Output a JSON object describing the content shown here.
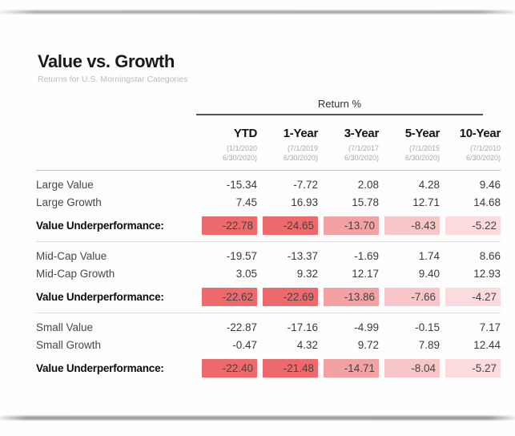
{
  "page": {
    "title": "Value vs. Growth",
    "subtitle": "Returns for U.S. Morningstar Categories"
  },
  "table": {
    "group_header": "Return %",
    "columns": [
      {
        "label": "YTD",
        "date_line1": "(1/1/2020",
        "date_line2": "6/30/2020)"
      },
      {
        "label": "1-Year",
        "date_line1": "(7/1/2019",
        "date_line2": "6/30/2020)"
      },
      {
        "label": "3-Year",
        "date_line1": "(7/1/2017",
        "date_line2": "6/30/2020)"
      },
      {
        "label": "5-Year",
        "date_line1": "(7/1/2015",
        "date_line2": "6/30/2020)"
      },
      {
        "label": "10-Year",
        "date_line1": "(7/1/2010",
        "date_line2": "6/30/2020)"
      }
    ],
    "sections": [
      {
        "rows": [
          {
            "label": "Large Value",
            "values": [
              "-15.34",
              "-7.72",
              "2.08",
              "4.28",
              "9.46"
            ]
          },
          {
            "label": "Large Growth",
            "values": [
              "7.45",
              "16.93",
              "15.78",
              "12.71",
              "14.68"
            ]
          }
        ],
        "summary": {
          "label": "Value Underperformance:",
          "values": [
            "-22.78",
            "-24.65",
            "-13.70",
            "-8.43",
            "-5.22"
          ],
          "cell_colors": [
            "#ee696c",
            "#ee696c",
            "#f4a1a4",
            "#f8c6c9",
            "#fbdbde"
          ]
        }
      },
      {
        "rows": [
          {
            "label": "Mid-Cap Value",
            "values": [
              "-19.57",
              "-13.37",
              "-1.69",
              "1.74",
              "8.66"
            ]
          },
          {
            "label": "Mid-Cap Growth",
            "values": [
              "3.05",
              "9.32",
              "12.17",
              "9.40",
              "12.93"
            ]
          }
        ],
        "summary": {
          "label": "Value Underperformance:",
          "values": [
            "-22.62",
            "-22.69",
            "-13.86",
            "-7.66",
            "-4.27"
          ],
          "cell_colors": [
            "#ee696c",
            "#ee696c",
            "#f4a1a4",
            "#f8c6c9",
            "#fbdbde"
          ]
        }
      },
      {
        "rows": [
          {
            "label": "Small Value",
            "values": [
              "-22.87",
              "-17.16",
              "-4.99",
              "-0.15",
              "7.17"
            ]
          },
          {
            "label": "Small Growth",
            "values": [
              "-0.47",
              "4.32",
              "9.72",
              "7.89",
              "12.44"
            ]
          }
        ],
        "summary": {
          "label": "Value Underperformance:",
          "values": [
            "-22.40",
            "-21.48",
            "-14.71",
            "-8.04",
            "-5.27"
          ],
          "cell_colors": [
            "#ee696c",
            "#ee696c",
            "#f4a1a4",
            "#f8c6c9",
            "#fbdbde"
          ]
        }
      }
    ]
  },
  "colors": {
    "heat_palette": [
      "#ee696c",
      "#f4a1a4",
      "#f8c6c9",
      "#fbdbde"
    ],
    "accent_red": "#ee696c"
  },
  "chart_data": {
    "type": "table",
    "title": "Value vs. Growth",
    "subtitle": "Returns for U.S. Morningstar Categories",
    "value_unit": "Return %",
    "columns": [
      "YTD (1/1/2020-6/30/2020)",
      "1-Year (7/1/2019-6/30/2020)",
      "3-Year (7/1/2017-6/30/2020)",
      "5-Year (7/1/2015-6/30/2020)",
      "10-Year (7/1/2010-6/30/2020)"
    ],
    "sections": [
      {
        "group": "Large",
        "rows": [
          {
            "label": "Large Value",
            "values": [
              -15.34,
              -7.72,
              2.08,
              4.28,
              9.46
            ]
          },
          {
            "label": "Large Growth",
            "values": [
              7.45,
              16.93,
              15.78,
              12.71,
              14.68
            ]
          },
          {
            "label": "Value Underperformance:",
            "values": [
              -22.78,
              -24.65,
              -13.7,
              -8.43,
              -5.22
            ],
            "highlighted": true
          }
        ]
      },
      {
        "group": "Mid-Cap",
        "rows": [
          {
            "label": "Mid-Cap Value",
            "values": [
              -19.57,
              -13.37,
              -1.69,
              1.74,
              8.66
            ]
          },
          {
            "label": "Mid-Cap Growth",
            "values": [
              3.05,
              9.32,
              12.17,
              9.4,
              12.93
            ]
          },
          {
            "label": "Value Underperformance:",
            "values": [
              -22.62,
              -22.69,
              -13.86,
              -7.66,
              -4.27
            ],
            "highlighted": true
          }
        ]
      },
      {
        "group": "Small",
        "rows": [
          {
            "label": "Small Value",
            "values": [
              -22.87,
              -17.16,
              -4.99,
              -0.15,
              7.17
            ]
          },
          {
            "label": "Small Growth",
            "values": [
              -0.47,
              4.32,
              9.72,
              7.89,
              12.44
            ]
          },
          {
            "label": "Value Underperformance:",
            "values": [
              -22.4,
              -21.48,
              -14.71,
              -8.04,
              -5.27
            ],
            "highlighted": true
          }
        ]
      }
    ]
  }
}
